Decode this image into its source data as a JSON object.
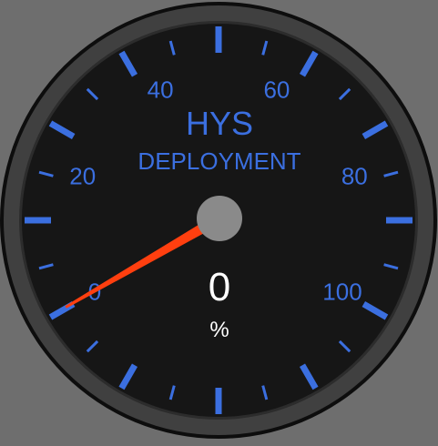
{
  "gauge": {
    "title": "HYS",
    "subtitle": "DEPLOYMENT",
    "value": 0,
    "display_value": "0",
    "unit": "%",
    "min": 0,
    "max": 100,
    "major_labels": [
      "0",
      "20",
      "40",
      "60",
      "80",
      "100"
    ],
    "colors": {
      "accent": "#3b6fe0",
      "needle": "#ff3f0f",
      "face": "#161616",
      "bezel": "#404040",
      "pivot": "#8a8a8a",
      "readout": "#ffffff",
      "background": "#6e6e6e"
    }
  }
}
